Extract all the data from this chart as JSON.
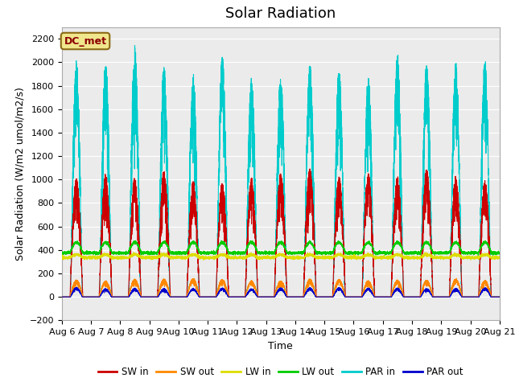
{
  "title": "Solar Radiation",
  "ylabel": "Solar Radiation (W/m2 umol/m2/s)",
  "xlabel": "Time",
  "ylim": [
    -200,
    2300
  ],
  "xtick_labels": [
    "Aug 6",
    "Aug 7",
    "Aug 8",
    "Aug 9",
    "Aug 10",
    "Aug 11",
    "Aug 12",
    "Aug 13",
    "Aug 14",
    "Aug 15",
    "Aug 16",
    "Aug 17",
    "Aug 18",
    "Aug 19",
    "Aug 20",
    "Aug 21"
  ],
  "legend_label": "DC_met",
  "legend_box_color": "#f0e68c",
  "legend_box_edge": "#8B6914",
  "series_colors": {
    "SW in": "#cc0000",
    "SW out": "#ff8800",
    "LW in": "#dddd00",
    "LW out": "#00cc00",
    "PAR in": "#00cccc",
    "PAR out": "#0000cc"
  },
  "background_color": "#ebebeb",
  "grid_color": "#ffffff",
  "n_days": 15,
  "points_per_day": 480,
  "SW_in_peak": 1080,
  "SW_out_peak": 155,
  "LW_in_base": 335,
  "LW_in_day": 25,
  "LW_out_base": 375,
  "LW_out_day": 90,
  "PAR_in_peak": 2100,
  "PAR_out_base": 80,
  "title_fontsize": 13,
  "label_fontsize": 9,
  "tick_fontsize": 8
}
